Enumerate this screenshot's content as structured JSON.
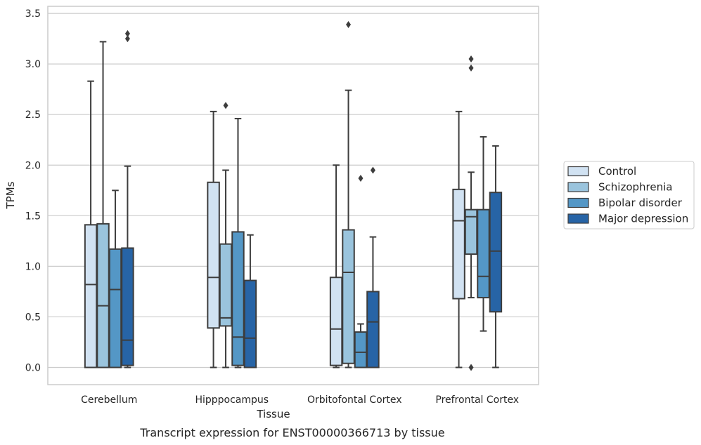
{
  "chart_data": {
    "type": "box",
    "caption": "Transcript expression for ENST00000366713 by tissue",
    "xlabel": "Tissue",
    "ylabel": "TPMs",
    "ylim": [
      -0.17,
      3.57
    ],
    "yticks": [
      "0.0",
      "0.5",
      "1.0",
      "1.5",
      "2.0",
      "2.5",
      "3.0",
      "3.5"
    ],
    "grid": "horizontal",
    "legend_position": "right",
    "categories": [
      "Cerebellum",
      "Hipppocampus",
      "Orbitofontal Cortex",
      "Prefrontal Cortex"
    ],
    "series": [
      {
        "name": "Control",
        "color": "#d1e2f2",
        "boxes": [
          {
            "whislo": 0.0,
            "q1": 0.0,
            "med": 0.82,
            "q3": 1.41,
            "whishi": 2.83,
            "fliers": []
          },
          {
            "whislo": 0.0,
            "q1": 0.39,
            "med": 0.89,
            "q3": 1.83,
            "whishi": 2.53,
            "fliers": []
          },
          {
            "whislo": 0.0,
            "q1": 0.02,
            "med": 0.38,
            "q3": 0.89,
            "whishi": 2.0,
            "fliers": []
          },
          {
            "whislo": 0.0,
            "q1": 0.68,
            "med": 1.45,
            "q3": 1.76,
            "whishi": 2.53,
            "fliers": []
          }
        ]
      },
      {
        "name": "Schizophrenia",
        "color": "#9ac4dd",
        "boxes": [
          {
            "whislo": 0.0,
            "q1": 0.0,
            "med": 0.61,
            "q3": 1.42,
            "whishi": 3.22,
            "fliers": []
          },
          {
            "whislo": 0.0,
            "q1": 0.41,
            "med": 0.49,
            "q3": 1.22,
            "whishi": 1.95,
            "fliers": [
              2.59
            ]
          },
          {
            "whislo": 0.0,
            "q1": 0.04,
            "med": 0.94,
            "q3": 1.36,
            "whishi": 2.74,
            "fliers": [
              3.39
            ]
          },
          {
            "whislo": 0.69,
            "q1": 1.12,
            "med": 1.49,
            "q3": 1.56,
            "whishi": 1.93,
            "fliers": [
              3.05,
              2.96,
              0.0
            ]
          }
        ]
      },
      {
        "name": "Bipolar disorder",
        "color": "#5497c6",
        "boxes": [
          {
            "whislo": 0.0,
            "q1": 0.0,
            "med": 0.77,
            "q3": 1.17,
            "whishi": 1.75,
            "fliers": []
          },
          {
            "whislo": 0.0,
            "q1": 0.02,
            "med": 0.3,
            "q3": 1.34,
            "whishi": 2.46,
            "fliers": []
          },
          {
            "whislo": 0.0,
            "q1": 0.0,
            "med": 0.15,
            "q3": 0.35,
            "whishi": 0.43,
            "fliers": [
              1.87
            ]
          },
          {
            "whislo": 0.36,
            "q1": 0.69,
            "med": 0.9,
            "q3": 1.56,
            "whishi": 2.28,
            "fliers": []
          }
        ]
      },
      {
        "name": "Major depression",
        "color": "#2764a6",
        "boxes": [
          {
            "whislo": 0.0,
            "q1": 0.02,
            "med": 0.27,
            "q3": 1.18,
            "whishi": 1.99,
            "fliers": [
              3.3,
              3.25
            ]
          },
          {
            "whislo": 0.0,
            "q1": 0.0,
            "med": 0.29,
            "q3": 0.86,
            "whishi": 1.31,
            "fliers": []
          },
          {
            "whislo": 0.0,
            "q1": 0.0,
            "med": 0.45,
            "q3": 0.75,
            "whishi": 1.29,
            "fliers": [
              1.95
            ]
          },
          {
            "whislo": 0.0,
            "q1": 0.55,
            "med": 1.15,
            "q3": 1.73,
            "whishi": 2.19,
            "fliers": []
          }
        ]
      }
    ]
  }
}
